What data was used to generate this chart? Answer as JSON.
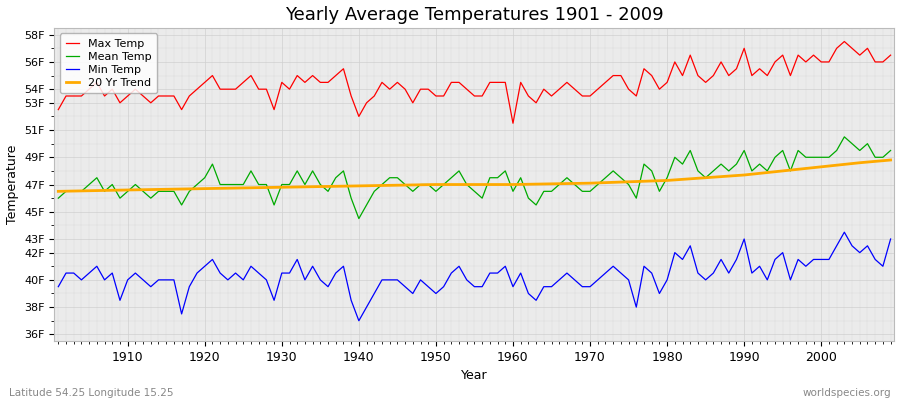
{
  "title": "Yearly Average Temperatures 1901 - 2009",
  "xlabel": "Year",
  "ylabel": "Temperature",
  "footnote_left": "Latitude 54.25 Longitude 15.25",
  "footnote_right": "worldspecies.org",
  "years": [
    1901,
    1902,
    1903,
    1904,
    1905,
    1906,
    1907,
    1908,
    1909,
    1910,
    1911,
    1912,
    1913,
    1914,
    1915,
    1916,
    1917,
    1918,
    1919,
    1920,
    1921,
    1922,
    1923,
    1924,
    1925,
    1926,
    1927,
    1928,
    1929,
    1930,
    1931,
    1932,
    1933,
    1934,
    1935,
    1936,
    1937,
    1938,
    1939,
    1940,
    1941,
    1942,
    1943,
    1944,
    1945,
    1946,
    1947,
    1948,
    1949,
    1950,
    1951,
    1952,
    1953,
    1954,
    1955,
    1956,
    1957,
    1958,
    1959,
    1960,
    1961,
    1962,
    1963,
    1964,
    1965,
    1966,
    1967,
    1968,
    1969,
    1970,
    1971,
    1972,
    1973,
    1974,
    1975,
    1976,
    1977,
    1978,
    1979,
    1980,
    1981,
    1982,
    1983,
    1984,
    1985,
    1986,
    1987,
    1988,
    1989,
    1990,
    1991,
    1992,
    1993,
    1994,
    1995,
    1996,
    1997,
    1998,
    1999,
    2000,
    2001,
    2002,
    2003,
    2004,
    2005,
    2006,
    2007,
    2008,
    2009
  ],
  "max_temp": [
    52.5,
    53.5,
    53.5,
    53.5,
    54.0,
    54.5,
    53.5,
    54.0,
    53.0,
    53.5,
    54.0,
    53.5,
    53.0,
    53.5,
    53.5,
    53.5,
    52.5,
    53.5,
    54.0,
    54.5,
    55.0,
    54.0,
    54.0,
    54.0,
    54.5,
    55.0,
    54.0,
    54.0,
    52.5,
    54.5,
    54.0,
    55.0,
    54.5,
    55.0,
    54.5,
    54.5,
    55.0,
    55.5,
    53.5,
    52.0,
    53.0,
    53.5,
    54.5,
    54.0,
    54.5,
    54.0,
    53.0,
    54.0,
    54.0,
    53.5,
    53.5,
    54.5,
    54.5,
    54.0,
    53.5,
    53.5,
    54.5,
    54.5,
    54.5,
    51.5,
    54.5,
    53.5,
    53.0,
    54.0,
    53.5,
    54.0,
    54.5,
    54.0,
    53.5,
    53.5,
    54.0,
    54.5,
    55.0,
    55.0,
    54.0,
    53.5,
    55.5,
    55.0,
    54.0,
    54.5,
    56.0,
    55.0,
    56.5,
    55.0,
    54.5,
    55.0,
    56.0,
    55.0,
    55.5,
    57.0,
    55.0,
    55.5,
    55.0,
    56.0,
    56.5,
    55.0,
    56.5,
    56.0,
    56.5,
    56.0,
    56.0,
    57.0,
    57.5,
    57.0,
    56.5,
    57.0,
    56.0,
    56.0,
    56.5
  ],
  "mean_temp": [
    46.0,
    46.5,
    46.5,
    46.5,
    47.0,
    47.5,
    46.5,
    47.0,
    46.0,
    46.5,
    47.0,
    46.5,
    46.0,
    46.5,
    46.5,
    46.5,
    45.5,
    46.5,
    47.0,
    47.5,
    48.5,
    47.0,
    47.0,
    47.0,
    47.0,
    48.0,
    47.0,
    47.0,
    45.5,
    47.0,
    47.0,
    48.0,
    47.0,
    48.0,
    47.0,
    46.5,
    47.5,
    48.0,
    46.0,
    44.5,
    45.5,
    46.5,
    47.0,
    47.5,
    47.5,
    47.0,
    46.5,
    47.0,
    47.0,
    46.5,
    47.0,
    47.5,
    48.0,
    47.0,
    46.5,
    46.0,
    47.5,
    47.5,
    48.0,
    46.5,
    47.5,
    46.0,
    45.5,
    46.5,
    46.5,
    47.0,
    47.5,
    47.0,
    46.5,
    46.5,
    47.0,
    47.5,
    48.0,
    47.5,
    47.0,
    46.0,
    48.5,
    48.0,
    46.5,
    47.5,
    49.0,
    48.5,
    49.5,
    48.0,
    47.5,
    48.0,
    48.5,
    48.0,
    48.5,
    49.5,
    48.0,
    48.5,
    48.0,
    49.0,
    49.5,
    48.0,
    49.5,
    49.0,
    49.0,
    49.0,
    49.0,
    49.5,
    50.5,
    50.0,
    49.5,
    50.0,
    49.0,
    49.0,
    49.5
  ],
  "min_temp": [
    39.5,
    40.5,
    40.5,
    40.0,
    40.5,
    41.0,
    40.0,
    40.5,
    38.5,
    40.0,
    40.5,
    40.0,
    39.5,
    40.0,
    40.0,
    40.0,
    37.5,
    39.5,
    40.5,
    41.0,
    41.5,
    40.5,
    40.0,
    40.5,
    40.0,
    41.0,
    40.5,
    40.0,
    38.5,
    40.5,
    40.5,
    41.5,
    40.0,
    41.0,
    40.0,
    39.5,
    40.5,
    41.0,
    38.5,
    37.0,
    38.0,
    39.0,
    40.0,
    40.0,
    40.0,
    39.5,
    39.0,
    40.0,
    39.5,
    39.0,
    39.5,
    40.5,
    41.0,
    40.0,
    39.5,
    39.5,
    40.5,
    40.5,
    41.0,
    39.5,
    40.5,
    39.0,
    38.5,
    39.5,
    39.5,
    40.0,
    40.5,
    40.0,
    39.5,
    39.5,
    40.0,
    40.5,
    41.0,
    40.5,
    40.0,
    38.0,
    41.0,
    40.5,
    39.0,
    40.0,
    42.0,
    41.5,
    42.5,
    40.5,
    40.0,
    40.5,
    41.5,
    40.5,
    41.5,
    43.0,
    40.5,
    41.0,
    40.0,
    41.5,
    42.0,
    40.0,
    41.5,
    41.0,
    41.5,
    41.5,
    41.5,
    42.5,
    43.5,
    42.5,
    42.0,
    42.5,
    41.5,
    41.0,
    43.0
  ],
  "trend_years": [
    1901,
    1910,
    1920,
    1930,
    1940,
    1950,
    1960,
    1970,
    1975,
    1980,
    1985,
    1990,
    1995,
    2000,
    2005,
    2009
  ],
  "trend_vals": [
    46.5,
    46.6,
    46.7,
    46.8,
    46.9,
    47.0,
    47.0,
    47.1,
    47.2,
    47.3,
    47.5,
    47.7,
    48.0,
    48.3,
    48.6,
    48.8
  ],
  "max_color": "#ff0000",
  "mean_color": "#00aa00",
  "min_color": "#0000ff",
  "trend_color": "#ffaa00",
  "bg_color": "#ebebeb",
  "grid_color": "#d0d0d0",
  "ylim": [
    35.5,
    58.5
  ],
  "yticks": [
    36,
    38,
    40,
    42,
    43,
    45,
    47,
    49,
    51,
    53,
    54,
    56,
    58
  ],
  "ytick_labels": [
    "36F",
    "38F",
    "40F",
    "42F",
    "43F",
    "45F",
    "47F",
    "49F",
    "51F",
    "53F",
    "54F",
    "56F",
    "58F"
  ],
  "xticks": [
    1910,
    1920,
    1930,
    1940,
    1950,
    1960,
    1970,
    1980,
    1990,
    2000
  ],
  "xtick_labels": [
    "1910",
    "1920",
    "1930",
    "1940",
    "1950",
    "1960",
    "1970",
    "1980",
    "1990",
    "2000"
  ]
}
